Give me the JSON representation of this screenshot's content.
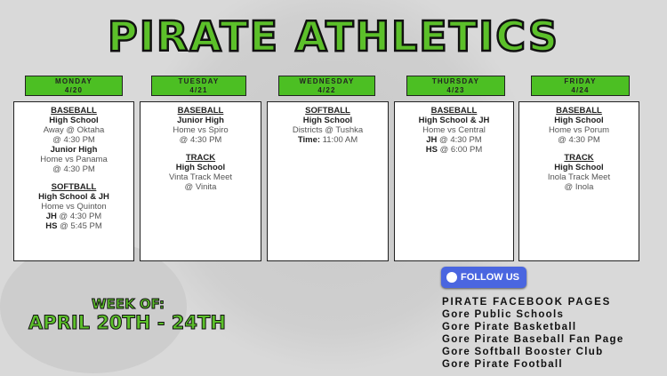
{
  "title": "PIRATE ATHLETICS",
  "days": [
    {
      "day": "MONDAY",
      "date": "4/20",
      "lines": [
        {
          "s": "u",
          "t": "BASEBALL"
        },
        {
          "s": "b",
          "t": "High School"
        },
        {
          "t": "Away @ Oktaha"
        },
        {
          "t": "@ 4:30 PM"
        },
        {
          "s": "b",
          "t": "Junior High"
        },
        {
          "t": "Home vs Panama"
        },
        {
          "t": "@ 4:30 PM"
        },
        {
          "s": "gap"
        },
        {
          "s": "u",
          "t": "SOFTBALL"
        },
        {
          "s": "b",
          "t": "High School & JH"
        },
        {
          "t": "Home vs Quinton"
        },
        {
          "b": "JH",
          "t": " @ 4:30 PM"
        },
        {
          "b": "HS",
          "t": " @ 5:45 PM"
        }
      ]
    },
    {
      "day": "TUESDAY",
      "date": "4/21",
      "lines": [
        {
          "s": "u",
          "t": "BASEBALL"
        },
        {
          "s": "b",
          "t": "Junior High"
        },
        {
          "t": "Home vs Spiro"
        },
        {
          "t": "@ 4:30 PM"
        },
        {
          "s": "gap"
        },
        {
          "s": "u",
          "t": "TRACK"
        },
        {
          "s": "b",
          "t": "High School"
        },
        {
          "t": "Vinta Track Meet"
        },
        {
          "t": "@ Vinita"
        }
      ]
    },
    {
      "day": "WEDNESDAY",
      "date": "4/22",
      "lines": [
        {
          "s": "u",
          "t": "SOFTBALL"
        },
        {
          "s": "b",
          "t": "High School"
        },
        {
          "t": "Districts @ Tushka"
        },
        {
          "b": "Time:",
          "t": " 11:00 AM"
        }
      ]
    },
    {
      "day": "THURSDAY",
      "date": "4/23",
      "lines": [
        {
          "s": "u",
          "t": "BASEBALL"
        },
        {
          "s": "b",
          "t": "High School & JH"
        },
        {
          "t": "Home vs Central"
        },
        {
          "b": "JH",
          "t": " @ 4:30 PM"
        },
        {
          "b": "HS",
          "t": " @ 6:00 PM"
        }
      ]
    },
    {
      "day": "FRIDAY",
      "date": "4/24",
      "lines": [
        {
          "s": "u",
          "t": "BASEBALL"
        },
        {
          "s": "b",
          "t": "High School"
        },
        {
          "t": "Home vs Porum"
        },
        {
          "t": "@ 4:30 PM"
        },
        {
          "s": "gap"
        },
        {
          "s": "u",
          "t": "TRACK"
        },
        {
          "s": "b",
          "t": "High School"
        },
        {
          "t": "Inola Track Meet"
        },
        {
          "t": "@ Inola"
        }
      ]
    }
  ],
  "week_label": "WEEK OF:",
  "week_range": "APRIL 20TH - 24TH",
  "follow_label": "FOLLOW US",
  "facebook": {
    "heading": "PIRATE FACEBOOK PAGES",
    "pages": [
      "Gore Public Schools",
      "Gore Pirate Basketball",
      "Gore Pirate Baseball Fan Page",
      "Gore Softball Booster Club",
      "Gore Pirate Football"
    ]
  },
  "colors": {
    "accent_green": "#4cbf23",
    "button_blue": "#4a66e0"
  }
}
